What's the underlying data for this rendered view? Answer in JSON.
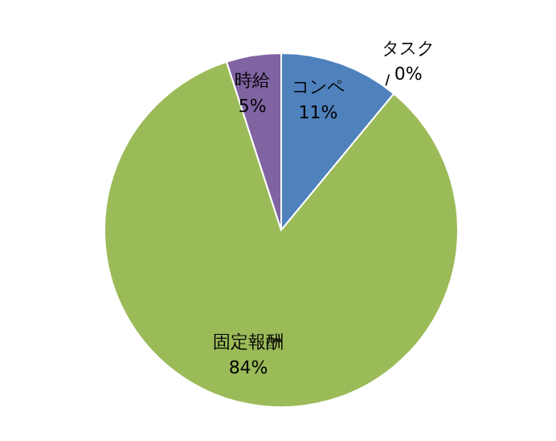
{
  "chart_data": {
    "type": "pie",
    "categories": [
      "コンペ",
      "タスク",
      "固定報酬",
      "時給"
    ],
    "values": [
      11,
      0,
      84,
      5
    ],
    "colors": [
      "#4f81bd",
      "#c0504d",
      "#9bbb59",
      "#8064a2"
    ],
    "value_labels": [
      "11%",
      "0%",
      "84%",
      "5%"
    ],
    "legend": false
  }
}
